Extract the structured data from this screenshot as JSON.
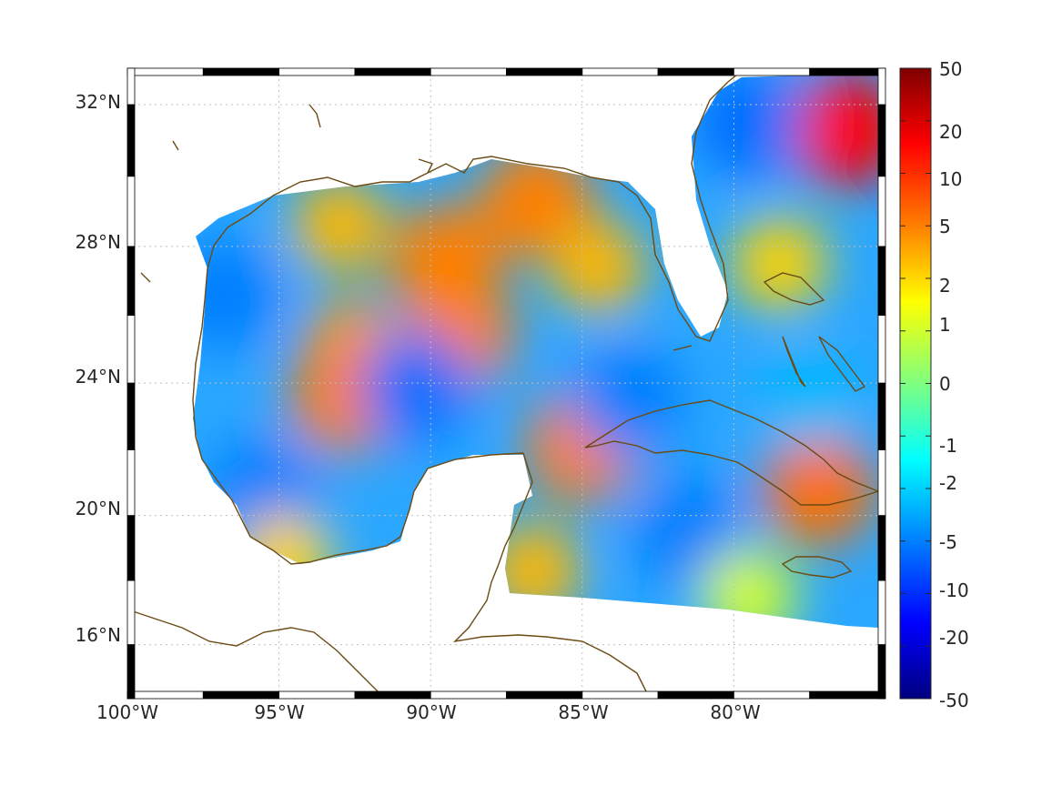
{
  "map": {
    "lon_range": [
      -100,
      -75
    ],
    "lat_range": [
      14.3,
      33
    ],
    "projection": "mercator",
    "grid": true,
    "frame_style": "black-white checkered border",
    "colors": {
      "coastline": "#6b4a14",
      "grid": "#bfbfbf",
      "background": "#ffffff"
    },
    "x_ticks": [
      {
        "lon": -100,
        "label": "100°W"
      },
      {
        "lon": -95,
        "label": "95°W"
      },
      {
        "lon": -90,
        "label": "90°W"
      },
      {
        "lon": -85,
        "label": "85°W"
      },
      {
        "lon": -80,
        "label": "80°W"
      }
    ],
    "y_ticks": [
      {
        "lat": 32,
        "label": "32°N"
      },
      {
        "lat": 28,
        "label": "28°N"
      },
      {
        "lat": 24,
        "label": "24°N"
      },
      {
        "lat": 20,
        "label": "20°N"
      },
      {
        "lat": 16,
        "label": "16°N"
      }
    ],
    "field_features": [
      {
        "lon": -89.5,
        "lat": 27.6,
        "value": 5
      },
      {
        "lon": -86.5,
        "lat": 29.3,
        "value": 5
      },
      {
        "lon": -84.5,
        "lat": 27.4,
        "value": 3
      },
      {
        "lon": -93.0,
        "lat": 28.6,
        "value": 3
      },
      {
        "lon": -92.6,
        "lat": 25.1,
        "value": 4
      },
      {
        "lon": -92.8,
        "lat": 23.6,
        "value": 5
      },
      {
        "lon": -89.1,
        "lat": 25.5,
        "value": 5
      },
      {
        "lon": -96.8,
        "lat": 26.6,
        "value": -5
      },
      {
        "lon": -90.5,
        "lat": 23.9,
        "value": -6
      },
      {
        "lon": -95.5,
        "lat": 20.7,
        "value": -5
      },
      {
        "lon": -94.8,
        "lat": 18.6,
        "value": 2
      },
      {
        "lon": -85.0,
        "lat": 22.1,
        "value": 5
      },
      {
        "lon": -86.6,
        "lat": 18.3,
        "value": 3
      },
      {
        "lon": -77.2,
        "lat": 20.8,
        "value": 6
      },
      {
        "lon": -76.3,
        "lat": 31.3,
        "value": 15
      },
      {
        "lon": -79.5,
        "lat": 31.5,
        "value": -6
      },
      {
        "lon": -78.5,
        "lat": 27.5,
        "value": 2
      },
      {
        "lon": -81.5,
        "lat": 19.5,
        "value": -5
      },
      {
        "lon": -79.5,
        "lat": 17.5,
        "value": 1
      },
      {
        "lon": -83.5,
        "lat": 23.5,
        "value": -5
      },
      {
        "lon": -77.5,
        "lat": 23.5,
        "value": -3
      }
    ]
  },
  "colorbar": {
    "range": [
      -50,
      50
    ],
    "tick_labels": [
      "50",
      "20",
      "10",
      "5",
      "2",
      "1",
      "0",
      "-1",
      "-2",
      "-5",
      "-10",
      "-20",
      "-50"
    ],
    "colormap": "jet"
  }
}
